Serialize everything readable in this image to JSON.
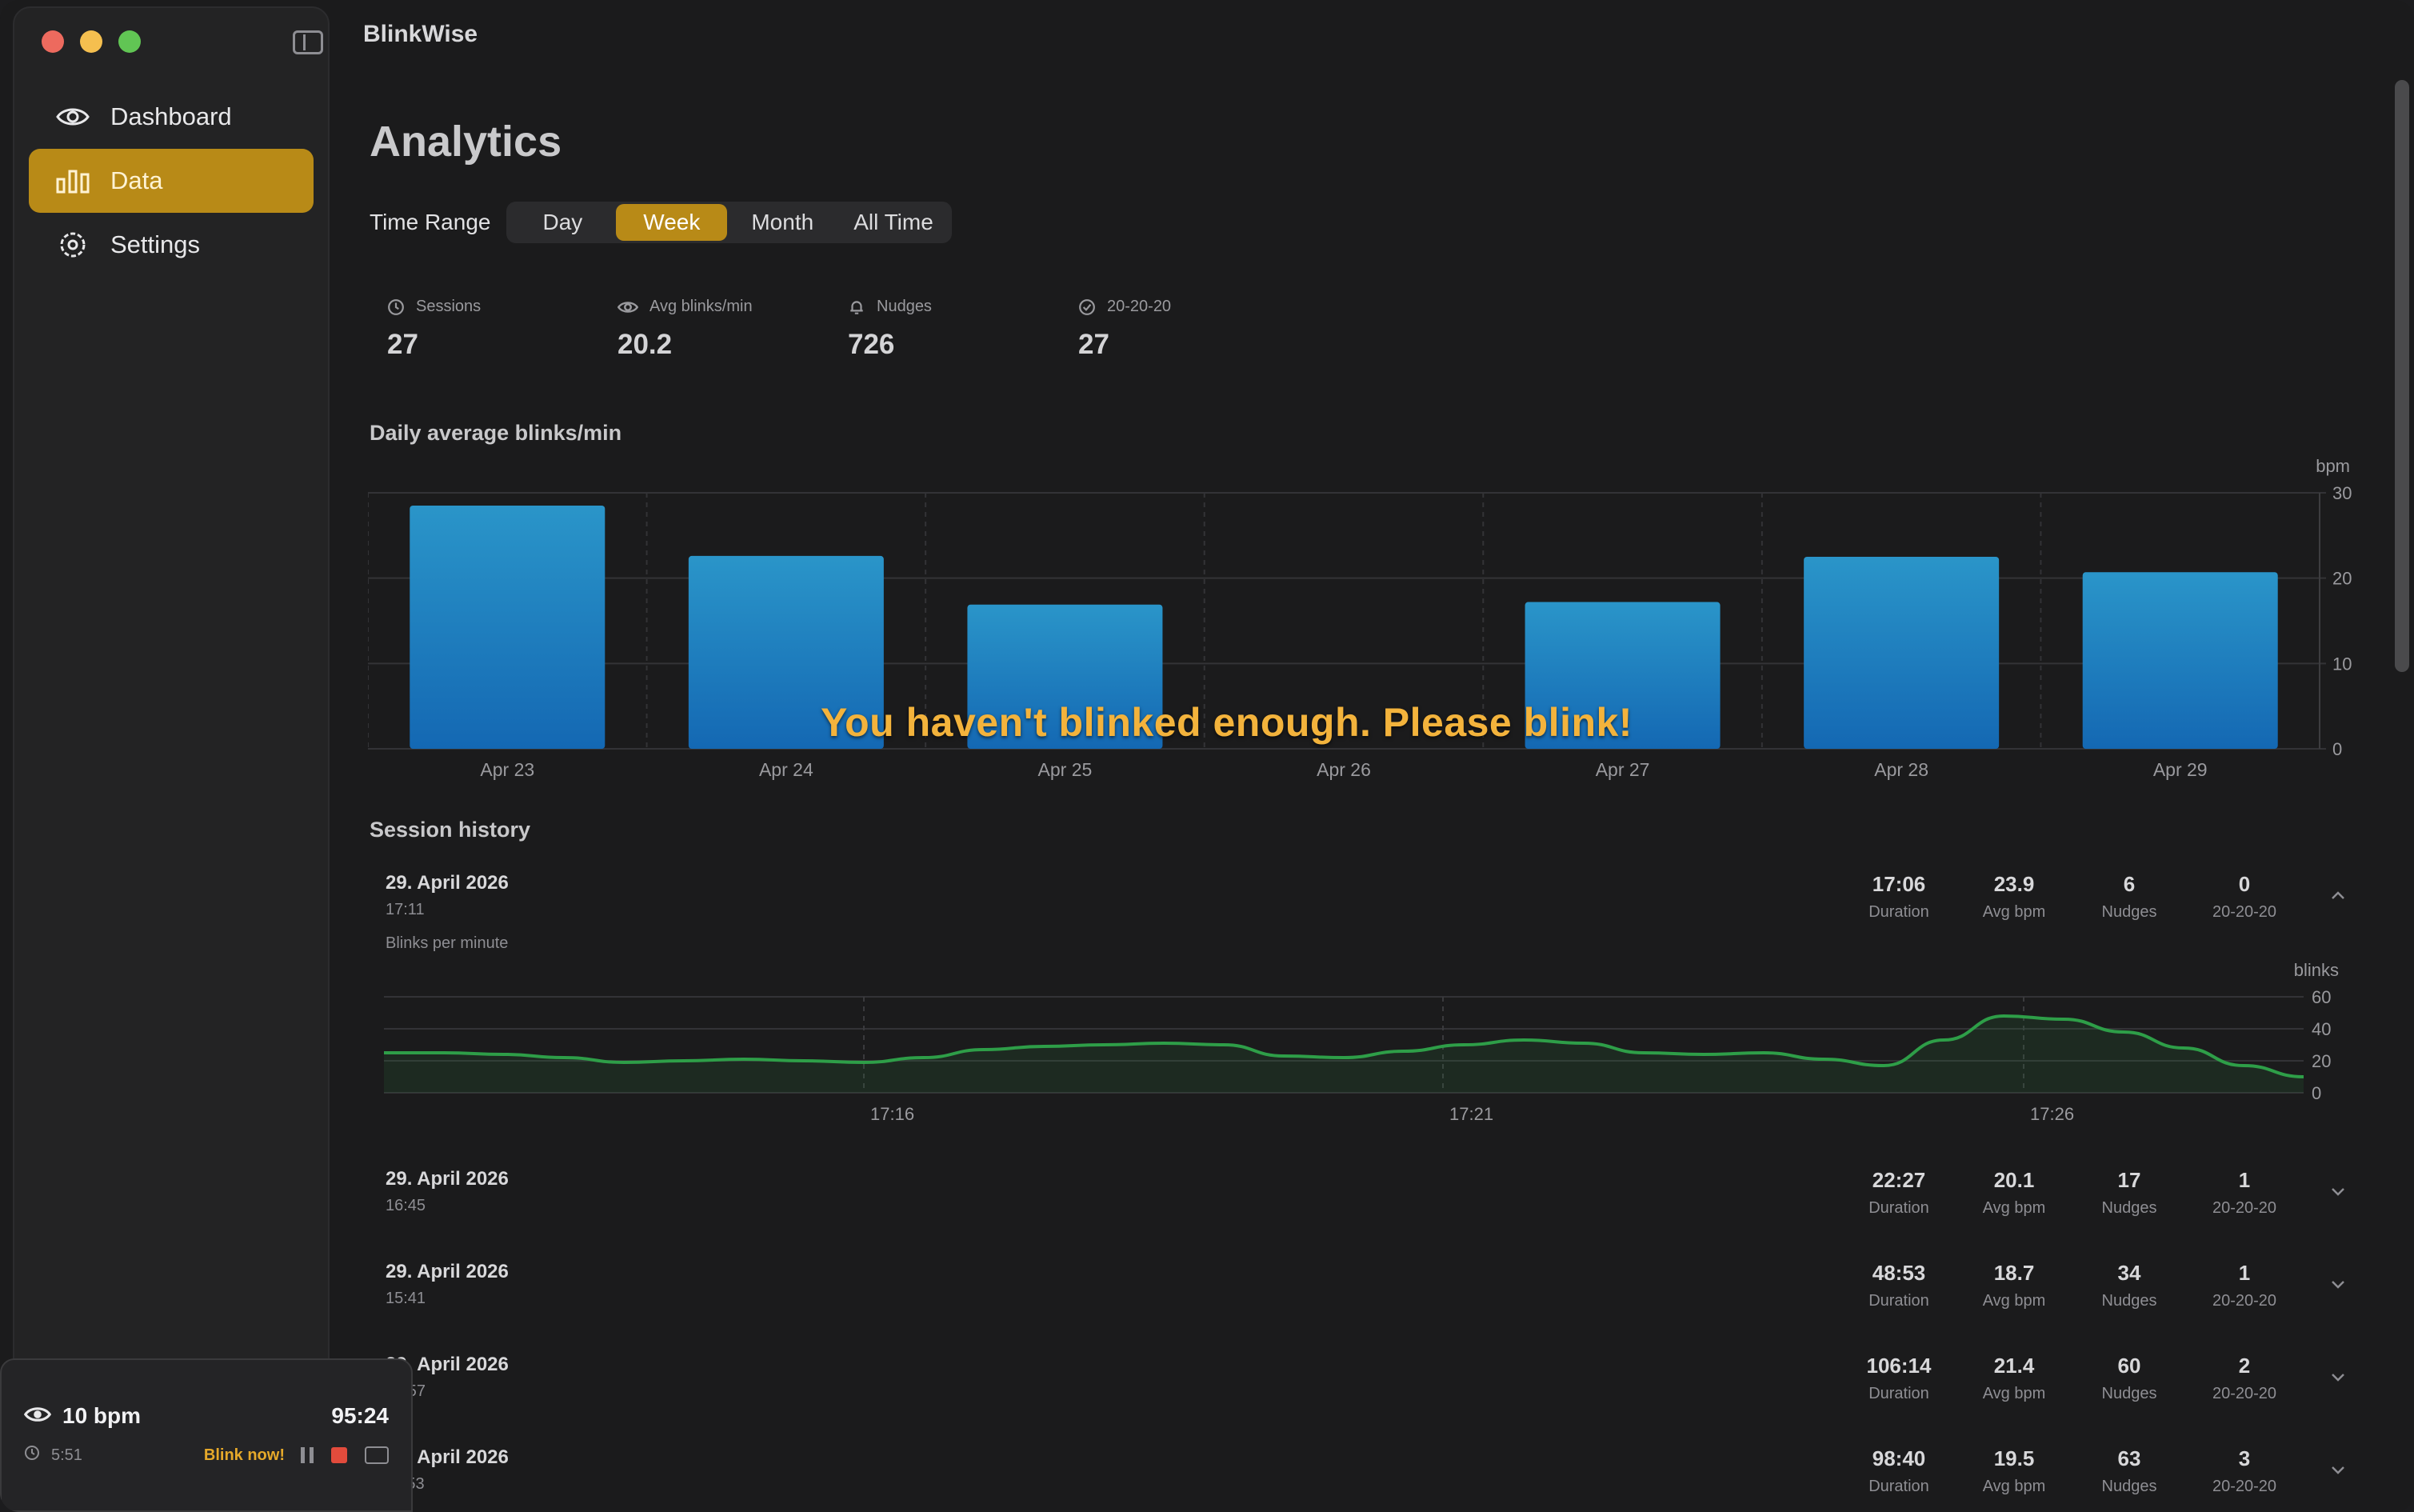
{
  "window": {
    "title": "BlinkWise"
  },
  "sidebar": {
    "items": [
      {
        "label": "Dashboard",
        "icon": "eye-icon",
        "active": false
      },
      {
        "label": "Data",
        "icon": "bar-chart-icon",
        "active": true
      },
      {
        "label": "Settings",
        "icon": "gear-icon",
        "active": false
      }
    ]
  },
  "mini_player": {
    "bpm": "10 bpm",
    "timer": "95:24",
    "elapsed": "5:51",
    "alert": "Blink now!"
  },
  "page": {
    "title": "Analytics"
  },
  "time_range": {
    "label": "Time Range",
    "options": [
      "Day",
      "Week",
      "Month",
      "All Time"
    ],
    "selected": "Week"
  },
  "stats": [
    {
      "label": "Sessions",
      "value": "27",
      "icon": "clock-icon"
    },
    {
      "label": "Avg blinks/min",
      "value": "20.2",
      "icon": "eye-icon"
    },
    {
      "label": "Nudges",
      "value": "726",
      "icon": "bell-icon"
    },
    {
      "label": "20-20-20",
      "value": "27",
      "icon": "check-circle-icon"
    }
  ],
  "sections": {
    "daily": "Daily average blinks/min",
    "history": "Session history",
    "session_chart": "Blinks per minute"
  },
  "overlay_message": "You haven't blinked enough. Please blink!",
  "colors": {
    "accent": "#b88a17",
    "bar": "#1e88c9",
    "line": "#2e9e48",
    "alert": "#f3b33c"
  },
  "chart_data": [
    {
      "type": "bar",
      "title": "Daily average blinks/min",
      "unit_label": "bpm",
      "categories": [
        "Apr 23",
        "Apr 24",
        "Apr 25",
        "Apr 26",
        "Apr 27",
        "Apr 28",
        "Apr 29"
      ],
      "values": [
        28.5,
        22.6,
        16.9,
        0,
        17.2,
        22.5,
        20.7
      ],
      "ylim": [
        0,
        30
      ],
      "yticks": [
        0,
        10,
        20,
        30
      ],
      "grid": true
    },
    {
      "type": "area",
      "title": "Blinks per minute",
      "unit_label": "blinks",
      "x_ticks": [
        "17:16",
        "17:21",
        "17:26"
      ],
      "values": [
        25,
        25,
        24,
        22,
        19,
        20,
        21,
        20,
        19,
        22,
        27,
        29,
        30,
        31,
        30,
        23,
        22,
        26,
        30,
        33,
        31,
        25,
        24,
        25,
        21,
        17,
        33,
        48,
        46,
        38,
        28,
        17,
        10
      ],
      "ylim": [
        0,
        60
      ],
      "yticks": [
        0,
        20,
        40,
        60
      ],
      "grid": true
    }
  ],
  "sessions": [
    {
      "date": "29. April 2026",
      "time": "17:11",
      "duration": "17:06",
      "avg_bpm": "23.9",
      "nudges": "6",
      "twenty": "0",
      "expanded": true
    },
    {
      "date": "29. April 2026",
      "time": "16:45",
      "duration": "22:27",
      "avg_bpm": "20.1",
      "nudges": "17",
      "twenty": "1",
      "expanded": false
    },
    {
      "date": "29. April 2026",
      "time": "15:41",
      "duration": "48:53",
      "avg_bpm": "18.7",
      "nudges": "34",
      "twenty": "1",
      "expanded": false
    },
    {
      "date": "29. April 2026",
      "time": "13:57",
      "duration": "106:14",
      "avg_bpm": "21.4",
      "nudges": "60",
      "twenty": "2",
      "expanded": false
    },
    {
      "date": "29. April 2026",
      "time": "11:53",
      "duration": "98:40",
      "avg_bpm": "19.5",
      "nudges": "63",
      "twenty": "3",
      "expanded": false
    }
  ],
  "metric_labels": {
    "duration": "Duration",
    "avg_bpm": "Avg bpm",
    "nudges": "Nudges",
    "twenty": "20-20-20"
  }
}
